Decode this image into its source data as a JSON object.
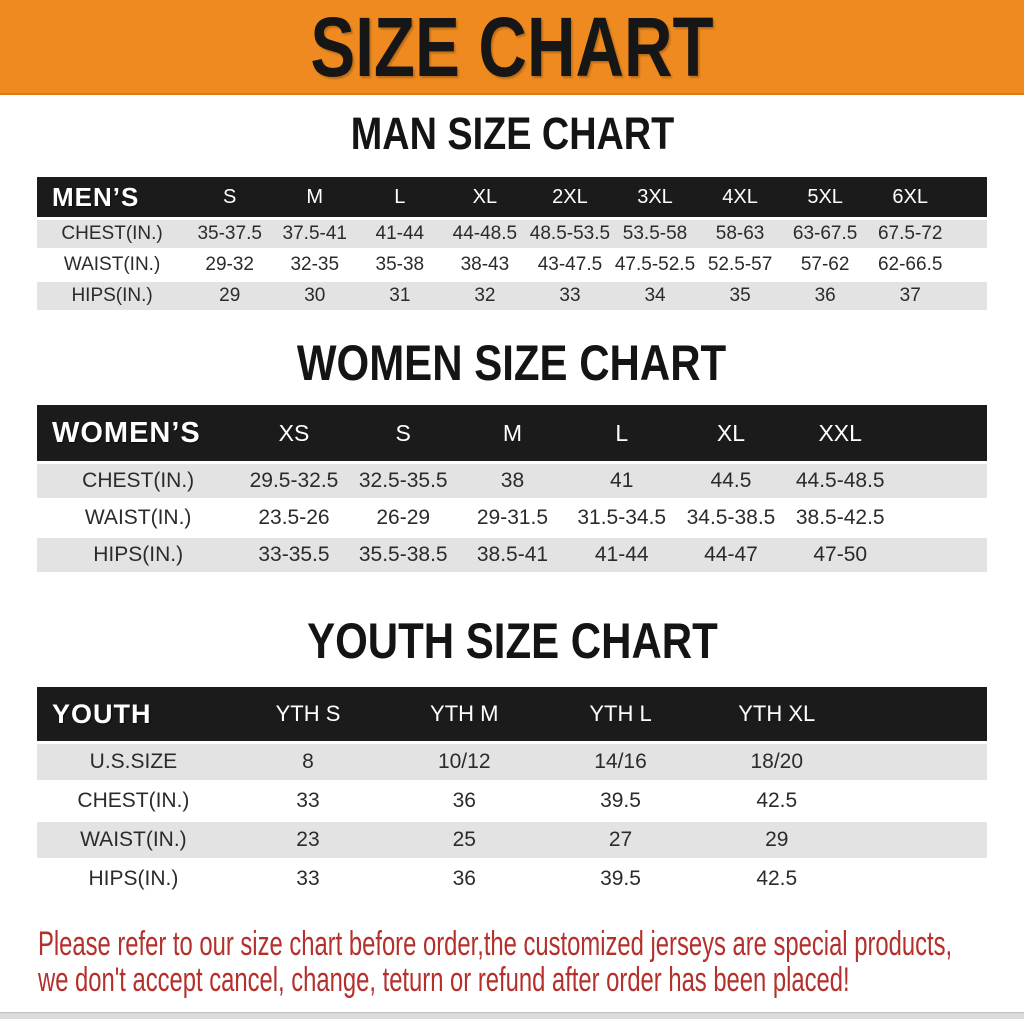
{
  "banner": {
    "title": "SIZE CHART",
    "bg_color": "#EE8A1F",
    "text_color": "#161616"
  },
  "chart_data": [
    {
      "type": "table",
      "title": "MAN SIZE CHART",
      "header_label": "MEN’S",
      "columns": [
        "S",
        "M",
        "L",
        "XL",
        "2XL",
        "3XL",
        "4XL",
        "5XL",
        "6XL"
      ],
      "rows": [
        {
          "label": "CHEST(IN.)",
          "values": [
            "35-37.5",
            "37.5-41",
            "41-44",
            "44-48.5",
            "48.5-53.5",
            "53.5-58",
            "58-63",
            "63-67.5",
            "67.5-72"
          ]
        },
        {
          "label": "WAIST(IN.)",
          "values": [
            "29-32",
            "32-35",
            "35-38",
            "38-43",
            "43-47.5",
            "47.5-52.5",
            "52.5-57",
            "57-62",
            "62-66.5"
          ]
        },
        {
          "label": "HIPS(IN.)",
          "values": [
            "29",
            "30",
            "31",
            "32",
            "33",
            "34",
            "35",
            "36",
            "37"
          ]
        }
      ]
    },
    {
      "type": "table",
      "title": "WOMEN SIZE CHART",
      "header_label": "WOMEN’S",
      "columns": [
        "XS",
        "S",
        "M",
        "L",
        "XL",
        "XXL"
      ],
      "rows": [
        {
          "label": "CHEST(IN.)",
          "values": [
            "29.5-32.5",
            "32.5-35.5",
            "38",
            "41",
            "44.5",
            "44.5-48.5"
          ]
        },
        {
          "label": "WAIST(IN.)",
          "values": [
            "23.5-26",
            "26-29",
            "29-31.5",
            "31.5-34.5",
            "34.5-38.5",
            "38.5-42.5"
          ]
        },
        {
          "label": "HIPS(IN.)",
          "values": [
            "33-35.5",
            "35.5-38.5",
            "38.5-41",
            "41-44",
            "44-47",
            "47-50"
          ]
        }
      ]
    },
    {
      "type": "table",
      "title": "YOUTH SIZE CHART",
      "header_label": "YOUTH",
      "columns": [
        "YTH S",
        "YTH M",
        "YTH L",
        "YTH XL"
      ],
      "rows": [
        {
          "label": "U.S.SIZE",
          "values": [
            "8",
            "10/12",
            "14/16",
            "18/20"
          ]
        },
        {
          "label": "CHEST(IN.)",
          "values": [
            "33",
            "36",
            "39.5",
            "42.5"
          ]
        },
        {
          "label": "WAIST(IN.)",
          "values": [
            "23",
            "25",
            "27",
            "29"
          ]
        },
        {
          "label": "HIPS(IN.)",
          "values": [
            "33",
            "36",
            "39.5",
            "42.5"
          ]
        }
      ]
    }
  ],
  "disclaimer": {
    "line1": "Please refer to our size chart before order,the customized jerseys are special products,",
    "line2": "we don't accept cancel, change, teturn or refund after order has been placed!",
    "color": "#B3302C"
  },
  "colors": {
    "header_bg": "#1B1B1B",
    "row_gray": "#E3E3E3",
    "row_white": "#FFFFFF",
    "banner_orange": "#EE8A1F"
  }
}
